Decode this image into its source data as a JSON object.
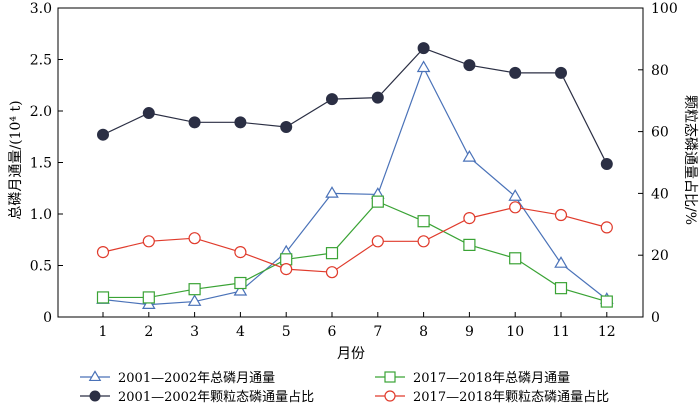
{
  "chart_data": {
    "type": "line",
    "x": [
      1,
      2,
      3,
      4,
      5,
      6,
      7,
      8,
      9,
      10,
      11,
      12
    ],
    "xlabel": "月份",
    "ylabel_left": "总磷月通量/(10⁴ t)",
    "ylabel_right": "颗粒态磷通量占比/%",
    "ylim_left": [
      0,
      3.0
    ],
    "ylim_right": [
      0,
      100
    ],
    "yticks_left": [
      "0",
      "0.5",
      "1.0",
      "1.5",
      "2.0",
      "2.5",
      "3.0"
    ],
    "yticks_right": [
      "0",
      "20",
      "40",
      "60",
      "80",
      "100"
    ],
    "xticks": [
      "1",
      "2",
      "3",
      "4",
      "5",
      "6",
      "7",
      "8",
      "9",
      "10",
      "11",
      "12"
    ],
    "grid": false,
    "legend_position": "bottom",
    "series": [
      {
        "name": "2001—2002年总磷月通量",
        "axis": "left",
        "marker": "triangle",
        "color": "#4a72b8",
        "values": [
          0.17,
          0.12,
          0.15,
          0.25,
          0.63,
          1.2,
          1.19,
          2.42,
          1.55,
          1.17,
          0.52,
          0.17
        ]
      },
      {
        "name": "2017—2018年总磷月通量",
        "axis": "left",
        "marker": "square",
        "color": "#3aa335",
        "values": [
          0.19,
          0.19,
          0.27,
          0.33,
          0.56,
          0.62,
          1.12,
          0.93,
          0.7,
          0.57,
          0.28,
          0.15
        ]
      },
      {
        "name": "2001—2002年颗粒态磷通量占比",
        "axis": "right",
        "marker": "filled-circle",
        "color": "#2b2f44",
        "values": [
          59,
          66,
          63,
          63,
          61.5,
          70.5,
          71,
          87,
          81.5,
          79,
          79,
          49.5
        ]
      },
      {
        "name": "2017—2018年颗粒态磷通量占比",
        "axis": "right",
        "marker": "open-circle",
        "color": "#e03b2c",
        "values": [
          21,
          24.5,
          25.5,
          21,
          15.5,
          14.5,
          24.5,
          24.5,
          32,
          35.5,
          33,
          29
        ]
      }
    ]
  }
}
